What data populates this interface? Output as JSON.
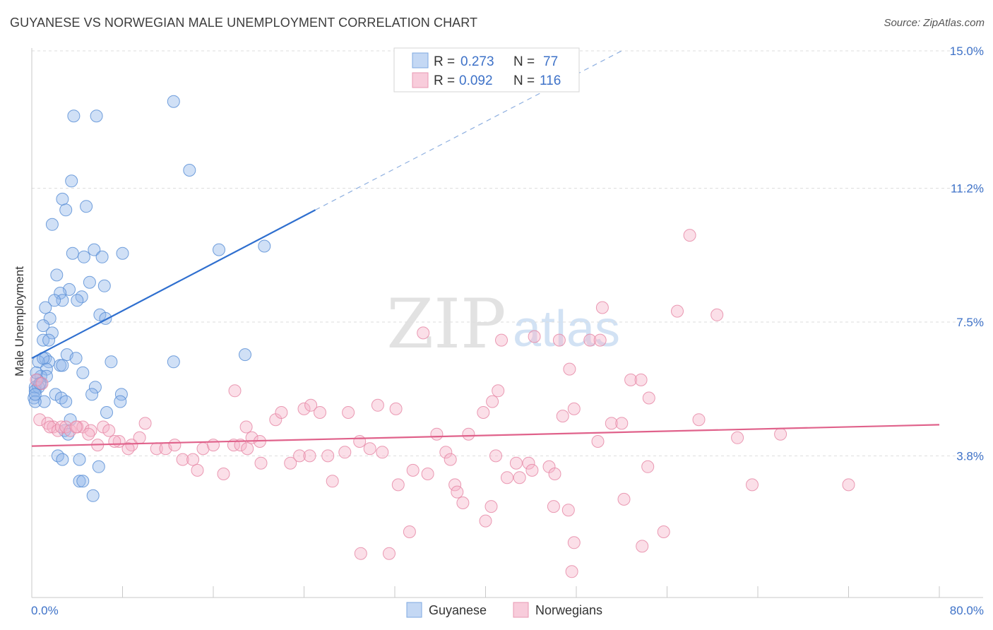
{
  "chart_data": {
    "type": "scatter",
    "title": "GUYANESE VS NORWEGIAN MALE UNEMPLOYMENT CORRELATION CHART",
    "source": "Source: ZipAtlas.com",
    "xlabel": "",
    "ylabel": "Male Unemployment",
    "xlim": [
      0,
      80
    ],
    "ylim": [
      0,
      15.5
    ],
    "x_tick_labels": [
      "0.0%",
      "80.0%"
    ],
    "y_ticks": [
      {
        "value": 3.8,
        "label": "3.8%"
      },
      {
        "value": 7.5,
        "label": "7.5%"
      },
      {
        "value": 11.2,
        "label": "11.2%"
      },
      {
        "value": 15.0,
        "label": "15.0%"
      }
    ],
    "watermark": {
      "zip": "ZIP",
      "atlas": "atlas"
    },
    "legend_top": [
      {
        "r_label": "R =",
        "r_value": "0.273",
        "n_label": "N =",
        "n_value": "77"
      },
      {
        "r_label": "R =",
        "r_value": "0.092",
        "n_label": "N =",
        "n_value": "116"
      }
    ],
    "series": [
      {
        "name": "Guyanese",
        "color": "#8fb6ea",
        "stroke": "#5b8fd6",
        "line_color": "#2f6fcf",
        "trend": {
          "x0": 0,
          "y0": 6.5,
          "x1": 25,
          "y1": 10.6,
          "dash_to_x": 52,
          "dash_to_y": 15.0
        },
        "points": [
          [
            3.7,
            13.2
          ],
          [
            5.7,
            13.2
          ],
          [
            12.5,
            13.6
          ],
          [
            13.9,
            11.7
          ],
          [
            3.5,
            11.4
          ],
          [
            2.7,
            10.9
          ],
          [
            4.8,
            10.7
          ],
          [
            3.0,
            10.6
          ],
          [
            1.8,
            10.2
          ],
          [
            16.5,
            9.5
          ],
          [
            20.5,
            9.6
          ],
          [
            3.6,
            9.4
          ],
          [
            5.5,
            9.5
          ],
          [
            8.0,
            9.4
          ],
          [
            6.2,
            9.3
          ],
          [
            4.6,
            9.3
          ],
          [
            2.2,
            8.8
          ],
          [
            5.1,
            8.6
          ],
          [
            6.4,
            8.5
          ],
          [
            3.3,
            8.4
          ],
          [
            2.5,
            8.3
          ],
          [
            4.4,
            8.2
          ],
          [
            2.7,
            8.1
          ],
          [
            4.0,
            8.1
          ],
          [
            2.0,
            8.1
          ],
          [
            1.2,
            7.9
          ],
          [
            6.0,
            7.7
          ],
          [
            6.5,
            7.6
          ],
          [
            1.6,
            7.6
          ],
          [
            1.0,
            7.4
          ],
          [
            1.8,
            7.2
          ],
          [
            1.0,
            7.0
          ],
          [
            1.5,
            7.0
          ],
          [
            18.8,
            6.6
          ],
          [
            3.1,
            6.6
          ],
          [
            3.9,
            6.5
          ],
          [
            1.2,
            6.5
          ],
          [
            1.5,
            6.4
          ],
          [
            0.6,
            6.4
          ],
          [
            2.5,
            6.3
          ],
          [
            7.0,
            6.4
          ],
          [
            12.5,
            6.4
          ],
          [
            2.7,
            6.3
          ],
          [
            1.3,
            6.2
          ],
          [
            4.5,
            6.1
          ],
          [
            0.8,
            6.0
          ],
          [
            1.3,
            6.0
          ],
          [
            0.5,
            5.9
          ],
          [
            0.8,
            5.8
          ],
          [
            0.3,
            5.7
          ],
          [
            0.6,
            5.7
          ],
          [
            5.6,
            5.7
          ],
          [
            0.3,
            5.6
          ],
          [
            2.1,
            5.5
          ],
          [
            5.3,
            5.5
          ],
          [
            7.9,
            5.5
          ],
          [
            0.2,
            5.4
          ],
          [
            2.6,
            5.4
          ],
          [
            3.0,
            5.3
          ],
          [
            7.8,
            5.3
          ],
          [
            1.1,
            5.3
          ],
          [
            0.3,
            5.3
          ],
          [
            6.6,
            5.0
          ],
          [
            3.4,
            4.8
          ],
          [
            2.9,
            4.5
          ],
          [
            3.2,
            4.4
          ],
          [
            2.3,
            3.8
          ],
          [
            2.7,
            3.7
          ],
          [
            4.2,
            3.7
          ],
          [
            5.9,
            3.5
          ],
          [
            4.2,
            3.1
          ],
          [
            4.5,
            3.1
          ],
          [
            5.4,
            2.7
          ],
          [
            0.4,
            6.1
          ],
          [
            0.7,
            5.8
          ],
          [
            0.3,
            5.5
          ],
          [
            1.0,
            6.5
          ]
        ]
      },
      {
        "name": "Norwegians",
        "color": "#f5b3c8",
        "stroke": "#e68aa7",
        "line_color": "#e0628b",
        "trend": {
          "x0": 0,
          "y0": 4.07,
          "x1": 80,
          "y1": 4.66
        },
        "points": [
          [
            0.7,
            4.8
          ],
          [
            1.4,
            4.7
          ],
          [
            1.9,
            4.6
          ],
          [
            0.4,
            5.9
          ],
          [
            0.9,
            5.8
          ],
          [
            1.6,
            4.6
          ],
          [
            2.3,
            4.5
          ],
          [
            2.6,
            4.6
          ],
          [
            3.0,
            4.6
          ],
          [
            3.4,
            4.5
          ],
          [
            4.0,
            4.6
          ],
          [
            4.5,
            4.6
          ],
          [
            5.2,
            4.5
          ],
          [
            6.3,
            4.6
          ],
          [
            6.8,
            4.5
          ],
          [
            7.7,
            4.2
          ],
          [
            8.8,
            4.1
          ],
          [
            9.5,
            4.3
          ],
          [
            5.8,
            4.1
          ],
          [
            7.3,
            4.2
          ],
          [
            8.5,
            4.0
          ],
          [
            10.0,
            4.7
          ],
          [
            11.0,
            4.0
          ],
          [
            11.8,
            4.0
          ],
          [
            12.6,
            4.1
          ],
          [
            13.3,
            3.7
          ],
          [
            14.2,
            3.7
          ],
          [
            15.1,
            4.0
          ],
          [
            16.0,
            4.1
          ],
          [
            17.8,
            4.1
          ],
          [
            18.4,
            4.1
          ],
          [
            19.0,
            4.0
          ],
          [
            19.4,
            4.3
          ],
          [
            18.9,
            4.6
          ],
          [
            17.9,
            5.6
          ],
          [
            21.5,
            4.8
          ],
          [
            22.0,
            5.0
          ],
          [
            24.0,
            5.1
          ],
          [
            24.6,
            5.2
          ],
          [
            25.4,
            5.0
          ],
          [
            27.9,
            5.0
          ],
          [
            30.5,
            5.2
          ],
          [
            32.1,
            5.1
          ],
          [
            28.9,
            4.2
          ],
          [
            29.8,
            4.0
          ],
          [
            20.2,
            3.6
          ],
          [
            22.8,
            3.6
          ],
          [
            23.6,
            3.8
          ],
          [
            24.5,
            3.8
          ],
          [
            26.1,
            3.8
          ],
          [
            27.6,
            3.9
          ],
          [
            30.9,
            3.9
          ],
          [
            33.6,
            3.4
          ],
          [
            32.3,
            3.0
          ],
          [
            34.9,
            3.3
          ],
          [
            35.7,
            4.4
          ],
          [
            36.5,
            3.9
          ],
          [
            36.9,
            3.7
          ],
          [
            37.3,
            3.0
          ],
          [
            38.5,
            4.4
          ],
          [
            39.8,
            5.0
          ],
          [
            40.6,
            5.3
          ],
          [
            41.1,
            5.6
          ],
          [
            38.0,
            2.5
          ],
          [
            40.0,
            2.0
          ],
          [
            40.5,
            2.4
          ],
          [
            40.9,
            3.8
          ],
          [
            41.9,
            3.2
          ],
          [
            42.7,
            3.6
          ],
          [
            43.0,
            3.2
          ],
          [
            43.8,
            3.6
          ],
          [
            44.1,
            3.4
          ],
          [
            45.6,
            3.5
          ],
          [
            46.1,
            3.3
          ],
          [
            46.8,
            4.9
          ],
          [
            47.8,
            5.1
          ],
          [
            41.4,
            7.0
          ],
          [
            46.5,
            7.0
          ],
          [
            44.3,
            7.1
          ],
          [
            47.4,
            6.2
          ],
          [
            49.2,
            7.0
          ],
          [
            50.1,
            7.0
          ],
          [
            49.9,
            4.2
          ],
          [
            51.1,
            4.7
          ],
          [
            52.0,
            4.7
          ],
          [
            50.3,
            7.9
          ],
          [
            52.8,
            5.9
          ],
          [
            53.7,
            5.9
          ],
          [
            54.4,
            5.4
          ],
          [
            56.9,
            7.8
          ],
          [
            58.8,
            4.8
          ],
          [
            60.4,
            7.7
          ],
          [
            47.3,
            2.3
          ],
          [
            47.8,
            1.4
          ],
          [
            47.6,
            0.6
          ],
          [
            46.0,
            2.4
          ],
          [
            54.3,
            3.5
          ],
          [
            53.8,
            1.3
          ],
          [
            55.7,
            1.7
          ],
          [
            52.2,
            2.6
          ],
          [
            58.0,
            9.9
          ],
          [
            62.2,
            4.3
          ],
          [
            63.5,
            3.0
          ],
          [
            66.0,
            4.4
          ],
          [
            72.0,
            3.0
          ],
          [
            29.0,
            1.1
          ],
          [
            31.5,
            1.1
          ],
          [
            33.3,
            1.7
          ],
          [
            34.5,
            7.2
          ],
          [
            20.1,
            4.2
          ],
          [
            26.5,
            3.1
          ],
          [
            37.5,
            2.8
          ],
          [
            3.9,
            4.6
          ],
          [
            5.0,
            4.4
          ],
          [
            14.6,
            3.4
          ],
          [
            16.9,
            3.3
          ]
        ]
      }
    ]
  }
}
